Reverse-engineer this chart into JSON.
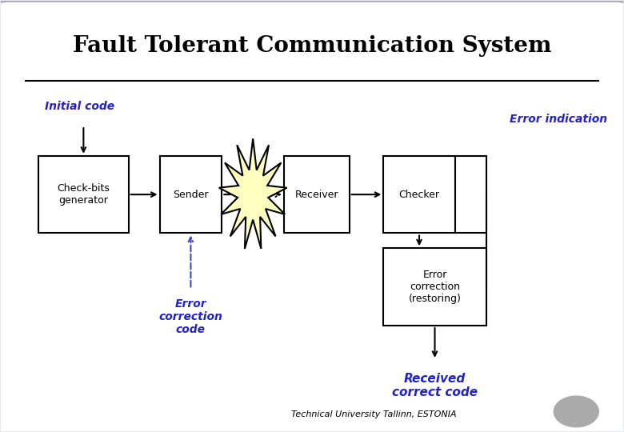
{
  "title": "Fault Tolerant Communication System",
  "bg_color": "#e8e8f0",
  "box_bg": "#ffffff",
  "box_edge": "#000000",
  "blue_text": "#2222cc",
  "black_text": "#000000",
  "footer": "Technical University Tallinn, ESTONIA",
  "labels": {
    "initial_code": "Initial code",
    "error_indication": "Error indication",
    "check_bits": "Check-bits\ngenerator",
    "sender": "Sender",
    "receiver": "Receiver",
    "checker": "Checker",
    "error_correction_label": "Error\ncorrection\ncode",
    "error_correction_box": "Error\ncorrection\n(restoring)",
    "received": "Received\ncorrect code"
  }
}
